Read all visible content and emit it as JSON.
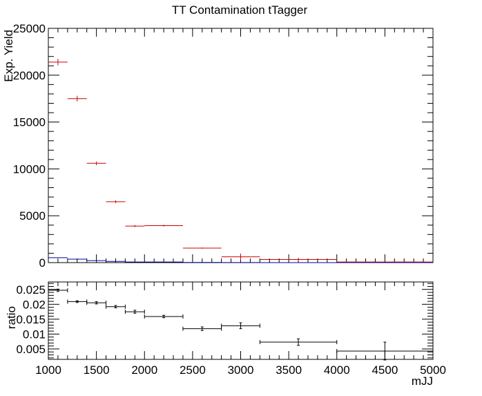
{
  "chart_data": [
    {
      "type": "scatter",
      "title": "TT Contamination tTagger",
      "ylabel": "Exp. Yield",
      "xlim": [
        1000,
        5000
      ],
      "ylim": [
        0,
        25000
      ],
      "yticks": [
        0,
        5000,
        10000,
        15000,
        20000,
        25000
      ],
      "grid": false,
      "series": [
        {
          "color": "#cc0000",
          "points": [
            {
              "xlo": 1000,
              "xhi": 1200,
              "y": 21400,
              "err": 350
            },
            {
              "xlo": 1200,
              "xhi": 1400,
              "y": 17500,
              "err": 300
            },
            {
              "xlo": 1400,
              "xhi": 1600,
              "y": 10600,
              "err": 200
            },
            {
              "xlo": 1600,
              "xhi": 1800,
              "y": 6500,
              "err": 150
            },
            {
              "xlo": 1800,
              "xhi": 2000,
              "y": 3900,
              "err": 110
            },
            {
              "xlo": 2000,
              "xhi": 2400,
              "y": 3950,
              "err": 90
            },
            {
              "xlo": 2400,
              "xhi": 2800,
              "y": 1550,
              "err": 60
            },
            {
              "xlo": 2800,
              "xhi": 3200,
              "y": 620,
              "err": 350
            },
            {
              "xlo": 3200,
              "xhi": 4000,
              "y": 330,
              "err": 200
            },
            {
              "xlo": 4000,
              "xhi": 5000,
              "y": 60,
              "err": 40
            }
          ]
        },
        {
          "color": "#000099",
          "points": [
            {
              "xlo": 1000,
              "xhi": 1200,
              "y": 530,
              "err": 20
            },
            {
              "xlo": 1200,
              "xhi": 1400,
              "y": 365,
              "err": 15
            },
            {
              "xlo": 1400,
              "xhi": 1600,
              "y": 215,
              "err": 10
            },
            {
              "xlo": 1600,
              "xhi": 1800,
              "y": 125,
              "err": 8
            },
            {
              "xlo": 1800,
              "xhi": 2000,
              "y": 68,
              "err": 5
            },
            {
              "xlo": 2000,
              "xhi": 2400,
              "y": 63,
              "err": 4
            },
            {
              "xlo": 2400,
              "xhi": 2800,
              "y": 18,
              "err": 2
            },
            {
              "xlo": 2800,
              "xhi": 3200,
              "y": 8,
              "err": 1
            },
            {
              "xlo": 3200,
              "xhi": 4000,
              "y": 2.4,
              "err": 0.5
            },
            {
              "xlo": 4000,
              "xhi": 5000,
              "y": 0.3,
              "err": 0.2
            }
          ]
        }
      ]
    },
    {
      "type": "scatter",
      "xlabel": "mJJ",
      "ylabel": "ratio",
      "xlim": [
        1000,
        5000
      ],
      "ylim": [
        0.0015,
        0.0275
      ],
      "xticks": [
        1000,
        1500,
        2000,
        2500,
        3000,
        3500,
        4000,
        4500,
        5000
      ],
      "yticks": [
        0.005,
        0.01,
        0.015,
        0.02,
        0.025
      ],
      "ytick_labels": [
        "0.005",
        "0.01",
        "0.015",
        "0.02",
        "0.025"
      ],
      "grid": false,
      "series": [
        {
          "color": "#000000",
          "points": [
            {
              "xlo": 1000,
              "xhi": 1200,
              "y": 0.0247,
              "err": 0.0004
            },
            {
              "xlo": 1200,
              "xhi": 1400,
              "y": 0.0209,
              "err": 0.0003
            },
            {
              "xlo": 1400,
              "xhi": 1600,
              "y": 0.0205,
              "err": 0.0004
            },
            {
              "xlo": 1600,
              "xhi": 1800,
              "y": 0.0192,
              "err": 0.0004
            },
            {
              "xlo": 1800,
              "xhi": 2000,
              "y": 0.0175,
              "err": 0.0005
            },
            {
              "xlo": 2000,
              "xhi": 2400,
              "y": 0.0159,
              "err": 0.0004
            },
            {
              "xlo": 2400,
              "xhi": 2800,
              "y": 0.0118,
              "err": 0.0006
            },
            {
              "xlo": 2800,
              "xhi": 3200,
              "y": 0.0128,
              "err": 0.001
            },
            {
              "xlo": 3200,
              "xhi": 4000,
              "y": 0.0073,
              "err": 0.0011
            },
            {
              "xlo": 4000,
              "xhi": 5000,
              "y": 0.0043,
              "err": 0.003
            }
          ]
        }
      ]
    }
  ]
}
